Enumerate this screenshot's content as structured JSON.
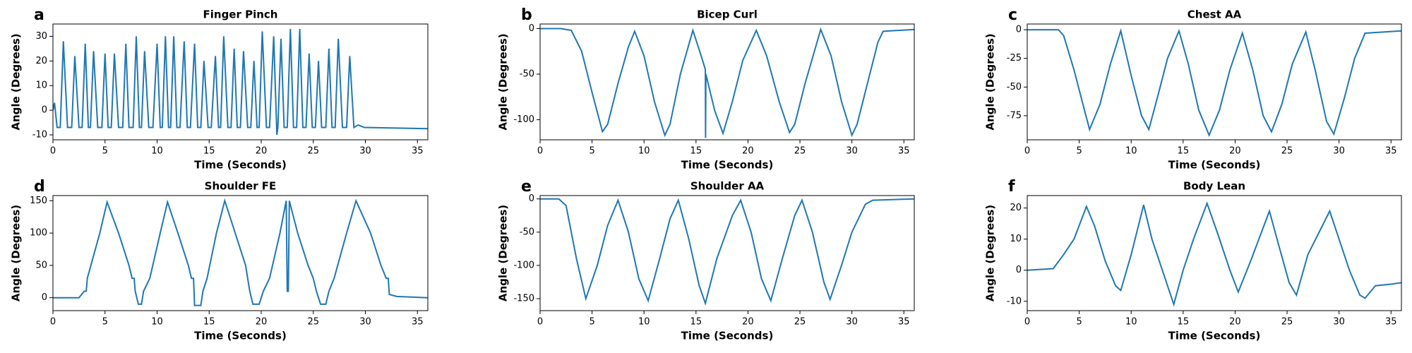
{
  "chart_data": [
    {
      "type": "line",
      "panel_label": "a",
      "title": "Finger Pinch",
      "xlabel": "Time (Seconds)",
      "ylabel": "Angle (Degrees)",
      "x": [
        0,
        0.15,
        0.4,
        0.7,
        1.0,
        1.4,
        1.8,
        2.1,
        2.5,
        2.8,
        3.1,
        3.4,
        3.6,
        3.9,
        4.3,
        4.7,
        5.0,
        5.3,
        5.6,
        5.9,
        6.3,
        6.7,
        7.0,
        7.3,
        7.7,
        8.0,
        8.3,
        8.5,
        8.8,
        9.2,
        9.6,
        10.0,
        10.3,
        10.5,
        10.8,
        11.1,
        11.3,
        11.6,
        11.9,
        12.2,
        12.6,
        12.9,
        13.2,
        13.6,
        13.9,
        14.2,
        14.5,
        14.9,
        15.2,
        15.6,
        15.9,
        16.1,
        16.4,
        16.8,
        17.1,
        17.4,
        17.7,
        18.0,
        18.3,
        18.7,
        19.0,
        19.3,
        19.6,
        19.8,
        20.1,
        20.5,
        20.8,
        21.2,
        21.5,
        21.6,
        21.9,
        22.2,
        22.5,
        22.8,
        23.1,
        23.4,
        23.7,
        24.0,
        24.3,
        24.6,
        24.9,
        25.2,
        25.5,
        25.8,
        26.2,
        26.5,
        26.8,
        27.1,
        27.4,
        27.8,
        28.2,
        28.5,
        28.9,
        29.3,
        29.9,
        36
      ],
      "series": [
        {
          "color": "#1f77b4",
          "values": [
            0,
            3,
            -7,
            -7,
            28,
            -7,
            -7,
            22,
            -7,
            -7,
            27,
            -7,
            -7,
            24,
            -7,
            -7,
            23,
            -7,
            -7,
            23,
            -7,
            -7,
            27,
            -7,
            -7,
            30,
            -7,
            -7,
            24,
            -7,
            -7,
            27,
            -7,
            -7,
            30,
            -7,
            -7,
            30,
            -7,
            -7,
            28,
            -7,
            -7,
            27,
            -7,
            -7,
            20,
            -7,
            -7,
            22,
            -7,
            -7,
            30,
            -7,
            -7,
            25,
            -7,
            -7,
            24,
            -7,
            -7,
            20,
            -7,
            -7,
            32,
            -7,
            -7,
            30,
            -10,
            -7,
            29,
            -7,
            -7,
            33,
            -7,
            -7,
            33,
            -7,
            -7,
            23,
            -7,
            -7,
            20,
            -7,
            -7,
            25,
            -7,
            -7,
            29,
            -7,
            -7,
            22,
            -7,
            -6,
            -7,
            -7.5
          ]
        }
      ],
      "xlim": [
        0,
        36
      ],
      "ylim": [
        -12,
        35
      ],
      "xticks": [
        0,
        5,
        10,
        15,
        20,
        25,
        30,
        35
      ],
      "yticks": [
        -10,
        0,
        10,
        20,
        30
      ]
    },
    {
      "type": "line",
      "panel_label": "b",
      "title": "Bicep Curl",
      "xlabel": "Time (Seconds)",
      "ylabel": "Angle (Degrees)",
      "x": [
        0,
        2,
        3,
        4,
        5,
        6,
        6.5,
        7.5,
        8.5,
        9.1,
        10,
        11,
        12,
        12.5,
        13.5,
        14.7,
        15.5,
        15.9,
        15.92,
        15.95,
        16.8,
        17.6,
        18.5,
        19.5,
        20.8,
        21.8,
        23,
        24,
        24.5,
        25.5,
        27,
        28,
        29,
        30,
        30.5,
        31.5,
        32.5,
        33,
        36
      ],
      "series": [
        {
          "color": "#1f77b4",
          "values": [
            0,
            0,
            -2,
            -25,
            -70,
            -113,
            -105,
            -60,
            -20,
            -3,
            -30,
            -80,
            -117,
            -105,
            -50,
            -2,
            -30,
            -45,
            -120,
            -50,
            -90,
            -115,
            -80,
            -35,
            -2,
            -30,
            -80,
            -114,
            -105,
            -60,
            -1,
            -30,
            -80,
            -117,
            -105,
            -60,
            -15,
            -3,
            -1
          ]
        }
      ],
      "xlim": [
        0,
        36
      ],
      "ylim": [
        -122,
        5
      ],
      "xticks": [
        0,
        5,
        10,
        15,
        20,
        25,
        30,
        35
      ],
      "yticks": [
        -100,
        -50,
        0
      ]
    },
    {
      "type": "line",
      "panel_label": "c",
      "title": "Chest AA",
      "xlabel": "Time (Seconds)",
      "ylabel": "Angle (Degrees)",
      "x": [
        0,
        3,
        3.5,
        4.5,
        5.5,
        6,
        7,
        8,
        9,
        10,
        11,
        11.7,
        12.5,
        13.5,
        14.6,
        15.5,
        16.5,
        17.5,
        18.5,
        19.5,
        20.7,
        21.7,
        22.7,
        23.5,
        24.5,
        25.5,
        26.8,
        27.7,
        28.8,
        29.5,
        30.5,
        31.5,
        32.5,
        36
      ],
      "series": [
        {
          "color": "#1f77b4",
          "values": [
            0,
            0,
            -5,
            -35,
            -70,
            -87,
            -65,
            -30,
            -1,
            -40,
            -75,
            -87,
            -60,
            -25,
            -1,
            -30,
            -70,
            -92,
            -70,
            -35,
            -3,
            -35,
            -75,
            -89,
            -65,
            -30,
            -2,
            -35,
            -80,
            -91,
            -60,
            -25,
            -3,
            -1
          ]
        }
      ],
      "xlim": [
        0,
        36
      ],
      "ylim": [
        -96,
        5
      ],
      "xticks": [
        0,
        5,
        10,
        15,
        20,
        25,
        30,
        35
      ],
      "yticks": [
        -75,
        -50,
        -25,
        0
      ]
    },
    {
      "type": "line",
      "panel_label": "d",
      "title": "Shoulder FE",
      "xlabel": "Time (Seconds)",
      "ylabel": "Angle (Degrees)",
      "x": [
        0,
        2.5,
        3,
        3.2,
        3.3,
        4.5,
        5.2,
        6.3,
        7.3,
        7.6,
        7.8,
        7.9,
        8.2,
        8.5,
        8.7,
        9.3,
        10.3,
        11,
        12,
        13,
        13.3,
        13.5,
        13.6,
        14.2,
        14.4,
        14.8,
        15.7,
        16.5,
        17.5,
        18.5,
        18.7,
        18.9,
        19.2,
        19.8,
        20.2,
        20.8,
        21.8,
        22.4,
        22.5,
        22.6,
        22.7,
        23.5,
        24.5,
        25,
        25.3,
        25.7,
        26.2,
        26.5,
        27,
        28.2,
        29.1,
        30.5,
        31.5,
        32,
        32.2,
        32.3,
        33,
        36
      ],
      "series": [
        {
          "color": "#1f77b4",
          "values": [
            0,
            0,
            10,
            10,
            30,
            100,
            148,
            100,
            50,
            30,
            30,
            10,
            -10,
            -10,
            10,
            30,
            100,
            148,
            100,
            50,
            30,
            30,
            -12,
            -12,
            10,
            30,
            100,
            150,
            100,
            50,
            30,
            10,
            -10,
            -10,
            10,
            30,
            100,
            150,
            10,
            10,
            150,
            100,
            50,
            30,
            10,
            -10,
            -10,
            10,
            30,
            100,
            150,
            100,
            50,
            30,
            30,
            5,
            2,
            0
          ]
        }
      ],
      "xlim": [
        0,
        36
      ],
      "ylim": [
        -20,
        158
      ],
      "xticks": [
        0,
        5,
        10,
        15,
        20,
        25,
        30,
        35
      ],
      "yticks": [
        0,
        50,
        100,
        150
      ]
    },
    {
      "type": "line",
      "panel_label": "e",
      "title": "Shoulder AA",
      "xlabel": "Time (Seconds)",
      "ylabel": "Angle (Degrees)",
      "x": [
        0,
        1.8,
        2.5,
        3.5,
        4.4,
        5.5,
        6.5,
        7.5,
        8.5,
        9.5,
        10.4,
        11.5,
        12.5,
        13.3,
        14.3,
        15.3,
        15.9,
        17,
        18.5,
        19.3,
        20.3,
        21.3,
        22.2,
        23.3,
        24.5,
        25.2,
        26.2,
        27.3,
        27.9,
        29,
        30,
        31.3,
        32,
        36
      ],
      "series": [
        {
          "color": "#1f77b4",
          "values": [
            0,
            0,
            -10,
            -90,
            -150,
            -100,
            -40,
            -2,
            -50,
            -120,
            -153,
            -90,
            -30,
            -2,
            -60,
            -130,
            -157,
            -90,
            -25,
            -2,
            -50,
            -120,
            -153,
            -90,
            -25,
            -2,
            -50,
            -125,
            -151,
            -100,
            -50,
            -8,
            -2,
            0
          ]
        }
      ],
      "xlim": [
        0,
        36
      ],
      "ylim": [
        -168,
        5
      ],
      "xticks": [
        0,
        5,
        10,
        15,
        20,
        25,
        30,
        35
      ],
      "yticks": [
        -150,
        -100,
        -50,
        0
      ]
    },
    {
      "type": "line",
      "panel_label": "f",
      "title": "Body Lean",
      "xlabel": "Time (Seconds)",
      "ylabel": "Angle (Degrees)",
      "x": [
        0,
        2.5,
        3.5,
        4.5,
        5.7,
        6.5,
        7.5,
        8.5,
        9,
        10,
        11.2,
        12,
        13,
        14.1,
        15,
        16,
        17.3,
        18.3,
        19.5,
        20.3,
        21.5,
        23.3,
        24.2,
        25.2,
        25.9,
        27,
        29.1,
        30,
        31,
        32,
        32.5,
        33.5,
        35,
        36
      ],
      "series": [
        {
          "color": "#1f77b4",
          "values": [
            0,
            0.5,
            5,
            10,
            20.5,
            14,
            3,
            -5,
            -6.5,
            5,
            21,
            10,
            0,
            -11,
            0,
            10,
            21.5,
            12,
            0,
            -7,
            3,
            19,
            8,
            -4,
            -8,
            5,
            19,
            10,
            0,
            -8,
            -9,
            -5,
            -4.5,
            -4
          ]
        }
      ],
      "xlim": [
        0,
        36
      ],
      "ylim": [
        -13,
        24
      ],
      "xticks": [
        0,
        5,
        10,
        15,
        20,
        25,
        30,
        35
      ],
      "yticks": [
        -10,
        0,
        10,
        20
      ]
    }
  ]
}
